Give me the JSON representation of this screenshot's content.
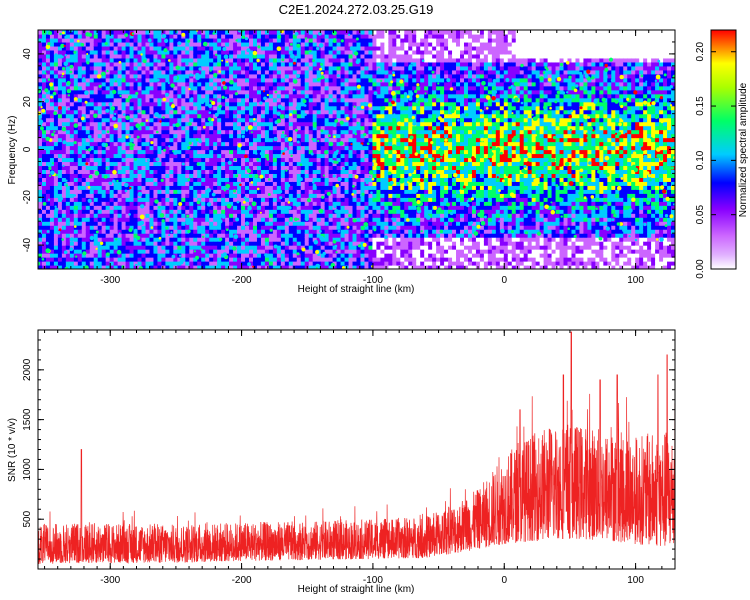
{
  "title": "C2E1.2024.272.03.25.G19",
  "chart_data": [
    {
      "type": "heatmap",
      "xlabel": "Height of straight line (km)",
      "ylabel": "Frequency (Hz)",
      "xlim": [
        -355,
        130
      ],
      "ylim": [
        -50,
        50
      ],
      "xticks": [
        "-300",
        "-200",
        "-100",
        "0",
        "100"
      ],
      "xtick_values": [
        -300,
        -200,
        -100,
        0,
        100
      ],
      "yticks": [
        "-40",
        "-20",
        "0",
        "20",
        "40"
      ],
      "ytick_values": [
        -40,
        -20,
        0,
        20,
        40
      ],
      "colorbar": {
        "label": "Normalized spectral amplitude",
        "range": [
          0,
          0.22
        ],
        "ticks": [
          "0.00",
          "0.05",
          "0.10",
          "0.15",
          "0.20"
        ],
        "tick_values": [
          0,
          0.05,
          0.1,
          0.15,
          0.2
        ]
      },
      "colors": {
        "low": "#ffffff",
        "violet": "#cc66ff",
        "purple": "#8800ff",
        "blue": "#0000ff",
        "cyan": "#00ccff",
        "green": "#00ff66",
        "yellow": "#ffff00",
        "red": "#ff0000"
      }
    },
    {
      "type": "line",
      "xlabel": "Height of straight line (km)",
      "ylabel": "SNR (10 * v/v)",
      "xlim": [
        -355,
        130
      ],
      "ylim": [
        0,
        2400
      ],
      "xticks": [
        "-300",
        "-200",
        "-100",
        "0",
        "100"
      ],
      "xtick_values": [
        -300,
        -200,
        -100,
        0,
        100
      ],
      "yticks": [
        "500",
        "1000",
        "1500",
        "2000"
      ],
      "ytick_values": [
        500,
        1000,
        1500,
        2000
      ],
      "line_color": "#ee2222",
      "envelope": [
        {
          "x": -355,
          "low": 50,
          "high": 450
        },
        {
          "x": -320,
          "low": 60,
          "high": 470
        },
        {
          "x": -300,
          "low": 60,
          "high": 460
        },
        {
          "x": -250,
          "low": 60,
          "high": 450
        },
        {
          "x": -200,
          "low": 80,
          "high": 470
        },
        {
          "x": -150,
          "low": 90,
          "high": 480
        },
        {
          "x": -100,
          "low": 100,
          "high": 500
        },
        {
          "x": -60,
          "low": 110,
          "high": 530
        },
        {
          "x": -40,
          "low": 150,
          "high": 650
        },
        {
          "x": -20,
          "low": 200,
          "high": 800
        },
        {
          "x": 0,
          "low": 250,
          "high": 1150
        },
        {
          "x": 20,
          "low": 280,
          "high": 1350
        },
        {
          "x": 40,
          "low": 300,
          "high": 1500
        },
        {
          "x": 60,
          "low": 300,
          "high": 1450
        },
        {
          "x": 80,
          "low": 280,
          "high": 1400
        },
        {
          "x": 100,
          "low": 250,
          "high": 1350
        },
        {
          "x": 130,
          "low": 200,
          "high": 1400
        }
      ],
      "spikes": [
        {
          "x": -322,
          "y": 1200
        },
        {
          "x": 51,
          "y": 2380
        },
        {
          "x": 45,
          "y": 1950
        },
        {
          "x": 73,
          "y": 1900
        },
        {
          "x": 86,
          "y": 1950
        },
        {
          "x": 117,
          "y": 1950
        },
        {
          "x": 124,
          "y": 2150
        },
        {
          "x": 12,
          "y": 1600
        }
      ]
    }
  ]
}
